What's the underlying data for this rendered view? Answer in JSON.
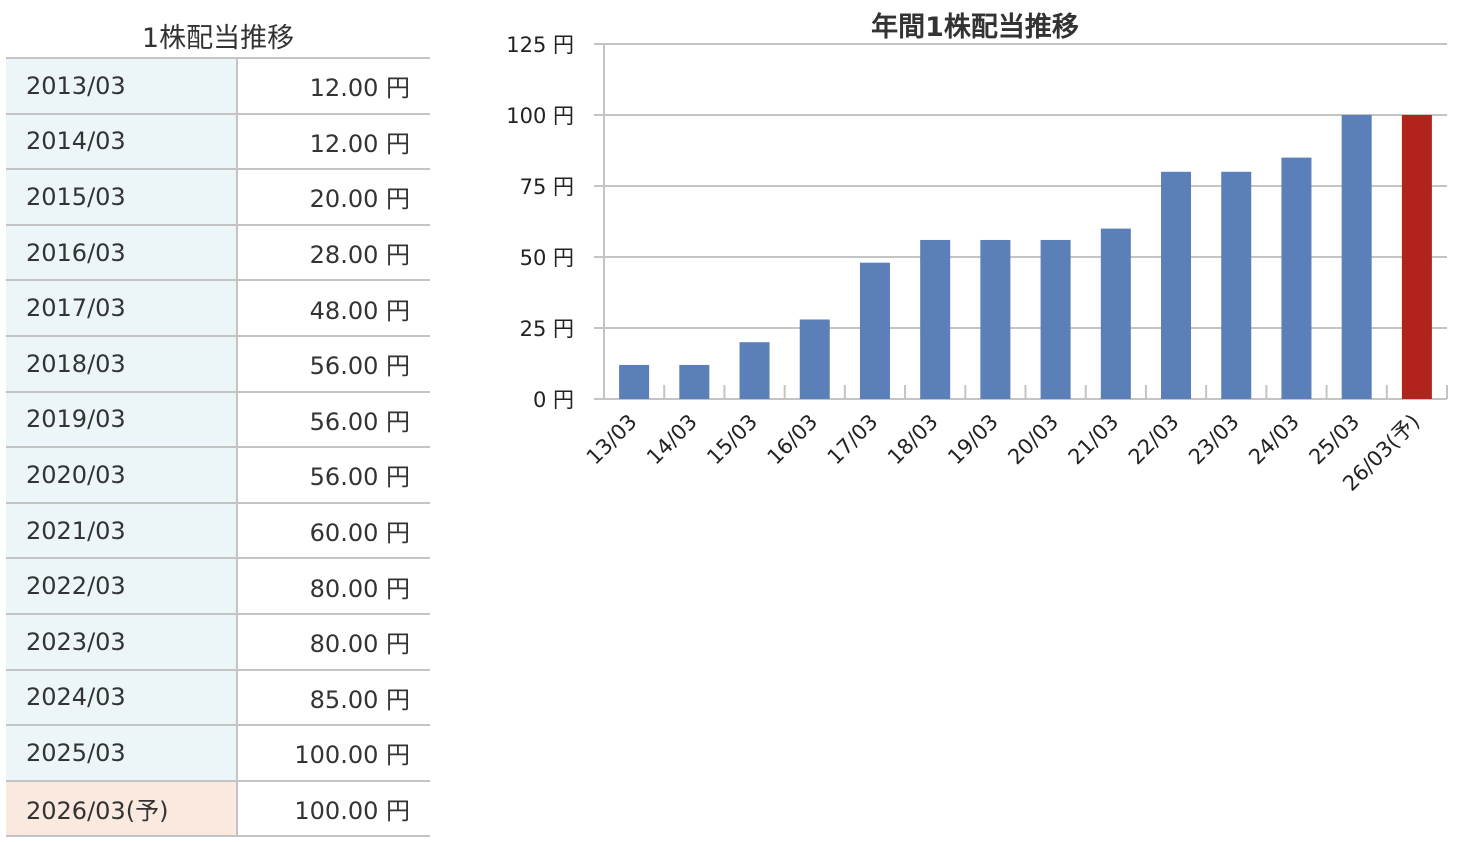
{
  "table": {
    "title": "1株配当推移",
    "rows": [
      {
        "period": "2013/03",
        "value": "12.00 円"
      },
      {
        "period": "2014/03",
        "value": "12.00 円"
      },
      {
        "period": "2015/03",
        "value": "20.00 円"
      },
      {
        "period": "2016/03",
        "value": "28.00 円"
      },
      {
        "period": "2017/03",
        "value": "48.00 円"
      },
      {
        "period": "2018/03",
        "value": "56.00 円"
      },
      {
        "period": "2019/03",
        "value": "56.00 円"
      },
      {
        "period": "2020/03",
        "value": "56.00 円"
      },
      {
        "period": "2021/03",
        "value": "60.00 円"
      },
      {
        "period": "2022/03",
        "value": "80.00 円"
      },
      {
        "period": "2023/03",
        "value": "80.00 円"
      },
      {
        "period": "2024/03",
        "value": "85.00 円"
      },
      {
        "period": "2025/03",
        "value": "100.00 円"
      },
      {
        "period": "2026/03(予)",
        "value": "100.00 円",
        "forecast": true
      }
    ]
  },
  "chart_data": {
    "type": "bar",
    "title": "年間1株配当推移",
    "categories": [
      "13/03",
      "14/03",
      "15/03",
      "16/03",
      "17/03",
      "18/03",
      "19/03",
      "20/03",
      "21/03",
      "22/03",
      "23/03",
      "24/03",
      "25/03",
      "26/03(予)"
    ],
    "values": [
      12,
      12,
      20,
      28,
      48,
      56,
      56,
      56,
      60,
      80,
      80,
      85,
      100,
      100
    ],
    "forecast_index": 13,
    "ylim": [
      0,
      125
    ],
    "yticks": [
      0,
      25,
      50,
      75,
      100,
      125
    ],
    "ytick_labels": [
      "0 円",
      "25 円",
      "50 円",
      "75 円",
      "100 円",
      "125 円"
    ],
    "grid": true,
    "colors": {
      "actual": "#5b7fb8",
      "forecast": "#b0241b",
      "grid": "#c4c4c4"
    }
  }
}
